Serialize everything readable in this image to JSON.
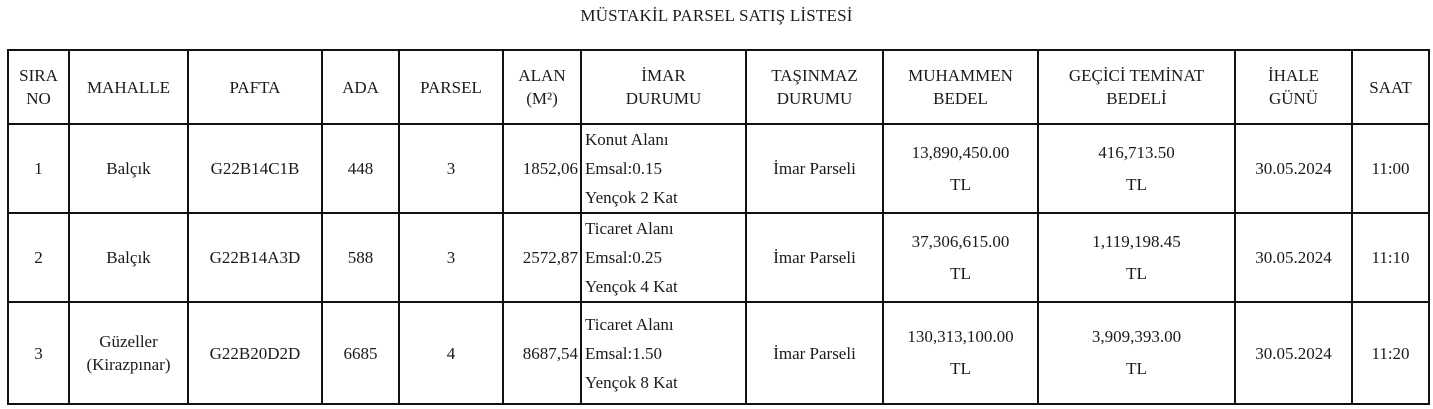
{
  "title": "MÜSTAKİL PARSEL SATIŞ LİSTESİ",
  "columns": [
    [
      "SIRA",
      "NO"
    ],
    [
      "MAHALLE"
    ],
    [
      "PAFTA"
    ],
    [
      "ADA"
    ],
    [
      "PARSEL"
    ],
    [
      "ALAN",
      "(M²)"
    ],
    [
      "İMAR",
      "DURUMU"
    ],
    [
      "TAŞINMAZ",
      "DURUMU"
    ],
    [
      "MUHAMMEN",
      "BEDEL"
    ],
    [
      "GEÇİCİ TEMİNAT",
      "BEDELİ"
    ],
    [
      "İHALE",
      "GÜNÜ"
    ],
    [
      "SAAT"
    ]
  ],
  "rows": [
    {
      "sira": "1",
      "mahalle": [
        "Balçık"
      ],
      "pafta": "G22B14C1B",
      "ada": "448",
      "parsel": "3",
      "alan": "1852,06",
      "imar": [
        "Konut Alanı",
        "Emsal:0.15",
        "Yençok 2 Kat"
      ],
      "tasinmaz": "İmar Parseli",
      "muhammen": [
        "13,890,450.00",
        "TL"
      ],
      "teminat": [
        "416,713.50",
        "TL"
      ],
      "gun": "30.05.2024",
      "saat": "11:00"
    },
    {
      "sira": "2",
      "mahalle": [
        "Balçık"
      ],
      "pafta": "G22B14A3D",
      "ada": "588",
      "parsel": "3",
      "alan": "2572,87",
      "imar": [
        "Ticaret Alanı",
        "Emsal:0.25",
        "Yençok 4 Kat"
      ],
      "tasinmaz": "İmar Parseli",
      "muhammen": [
        "37,306,615.00",
        "TL"
      ],
      "teminat": [
        "1,119,198.45",
        "TL"
      ],
      "gun": "30.05.2024",
      "saat": "11:10"
    },
    {
      "sira": "3",
      "mahalle": [
        "Güzeller",
        "(Kirazpınar)"
      ],
      "pafta": "G22B20D2D",
      "ada": "6685",
      "parsel": "4",
      "alan": "8687,54",
      "imar": [
        "Ticaret Alanı",
        "Emsal:1.50",
        "Yençok 8 Kat"
      ],
      "tasinmaz": "İmar Parseli",
      "muhammen": [
        "130,313,100.00",
        "TL"
      ],
      "teminat": [
        "3,909,393.00",
        "TL"
      ],
      "gun": "30.05.2024",
      "saat": "11:20"
    }
  ]
}
